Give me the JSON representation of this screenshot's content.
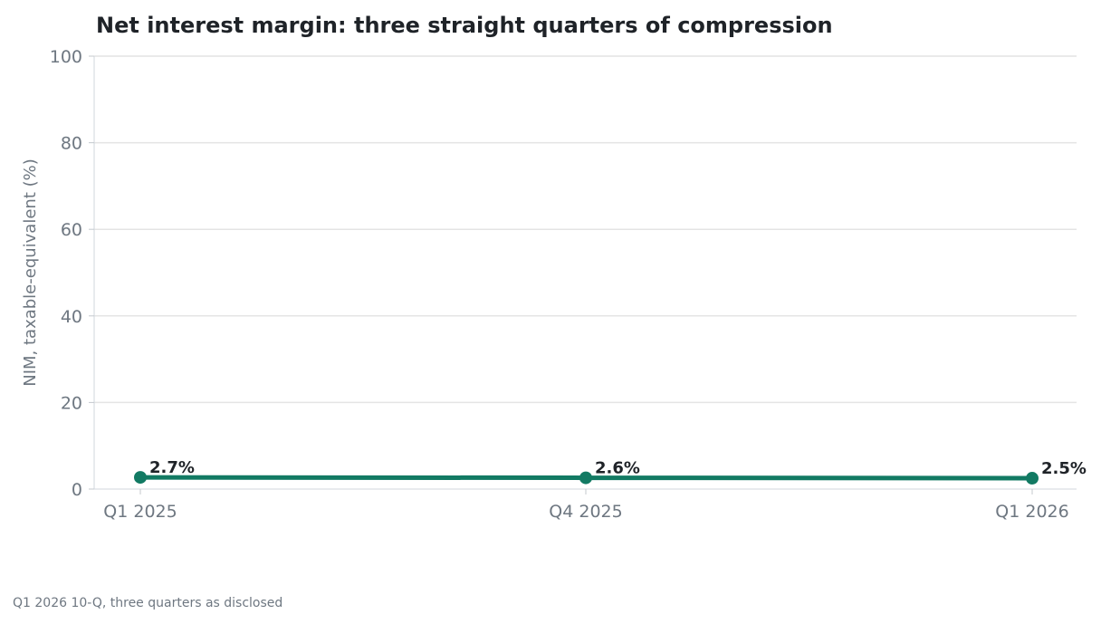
{
  "chart_data": {
    "type": "line",
    "title": "Net interest margin: three straight quarters of compression",
    "xlabel": "",
    "ylabel": "NIM, taxable-equivalent (%)",
    "categories": [
      "Q1 2025",
      "Q4 2025",
      "Q1 2026"
    ],
    "series": [
      {
        "values": [
          2.7,
          2.6,
          2.5
        ],
        "labels": [
          "2.7%",
          "2.6%",
          "2.5%"
        ],
        "color": "#127a63"
      }
    ],
    "ylim": [
      0,
      100
    ],
    "yticks": [
      0,
      20,
      40,
      60,
      80,
      100
    ],
    "grid": true,
    "legend": "none",
    "source": "Q1 2026 10-Q, three quarters as disclosed"
  }
}
